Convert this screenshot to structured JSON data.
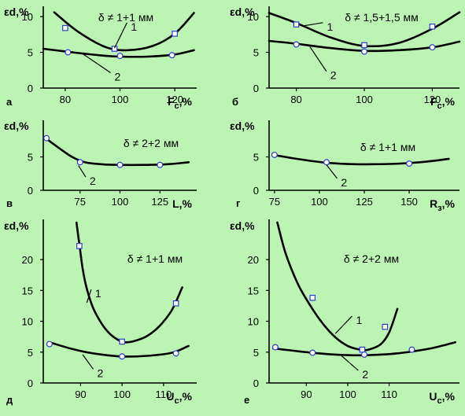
{
  "chart_data": [
    {
      "type": "line",
      "panel": "а",
      "ylabel": "εd,%",
      "xlabel": "F",
      "xlabel_sub": "c",
      "xlabel_unit": ",%",
      "note": "δ ≠ 1+1 мм",
      "xlim": [
        72,
        128
      ],
      "ylim": [
        0,
        11
      ],
      "xticks": [
        80,
        100,
        120
      ],
      "yticks": [
        0,
        5,
        10
      ],
      "curves": [
        {
          "name": "1",
          "x": [
            76,
            85,
            95,
            103,
            112,
            120,
            127
          ],
          "y": [
            10.6,
            7.8,
            5.7,
            5.3,
            5.9,
            7.6,
            10.5
          ]
        },
        {
          "name": "2",
          "x": [
            72,
            85,
            95,
            100,
            110,
            120,
            127
          ],
          "y": [
            5.5,
            4.9,
            4.5,
            4.4,
            4.4,
            4.7,
            5.3
          ]
        }
      ],
      "markers": [
        {
          "series": "1",
          "shape": "square",
          "x": [
            80,
            98,
            120
          ],
          "y": [
            8.4,
            5.5,
            7.6
          ]
        },
        {
          "series": "2",
          "shape": "circle",
          "x": [
            81,
            100,
            119
          ],
          "y": [
            5.0,
            4.5,
            4.6
          ]
        }
      ],
      "labels": [
        {
          "text": "1",
          "x": 104,
          "y": 8.6,
          "ax": 98,
          "ay": 5.6
        },
        {
          "text": "2",
          "x": 98,
          "y": 1.6,
          "ax": 86,
          "ay": 4.9
        }
      ]
    },
    {
      "type": "line",
      "panel": "б",
      "ylabel": "εd,%",
      "xlabel": "F",
      "xlabel_sub": "c",
      "xlabel_unit": ",%",
      "note": "δ ≠ 1,5+1,5 мм",
      "xlim": [
        72,
        128
      ],
      "ylim": [
        0,
        11
      ],
      "xticks": [
        80,
        100,
        120
      ],
      "yticks": [
        0,
        5,
        10
      ],
      "curves": [
        {
          "name": "1",
          "x": [
            72,
            80,
            90,
            100,
            110,
            120,
            128
          ],
          "y": [
            10.5,
            9.1,
            7.1,
            5.9,
            6.3,
            8.3,
            10.6
          ]
        },
        {
          "name": "2",
          "x": [
            72,
            80,
            90,
            100,
            110,
            120,
            128
          ],
          "y": [
            6.6,
            6.2,
            5.6,
            5.2,
            5.3,
            5.7,
            6.5
          ]
        }
      ],
      "markers": [
        {
          "series": "1",
          "shape": "square",
          "x": [
            80,
            100,
            120
          ],
          "y": [
            8.9,
            6.0,
            8.6
          ]
        },
        {
          "series": "2",
          "shape": "circle",
          "x": [
            80,
            100,
            120
          ],
          "y": [
            6.1,
            5.1,
            5.7
          ]
        }
      ],
      "labels": [
        {
          "text": "1",
          "x": 89,
          "y": 8.6,
          "ax": 82,
          "ay": 8.7
        },
        {
          "text": "2",
          "x": 90,
          "y": 1.8,
          "ax": 84,
          "ay": 5.8
        }
      ]
    },
    {
      "type": "line",
      "panel": "в",
      "ylabel": "εd,%",
      "xlabel": "L",
      "xlabel_sub": "",
      "xlabel_unit": ",%",
      "note": "δ ≠ 2+2 мм",
      "xlim": [
        52,
        148
      ],
      "ylim": [
        0,
        10
      ],
      "xticks": [
        75,
        100,
        125
      ],
      "yticks": [
        0,
        5
      ],
      "curves": [
        {
          "name": "",
          "x": [
            54,
            62,
            70,
            78,
            88,
            100,
            115,
            130,
            143
          ],
          "y": [
            7.7,
            6.3,
            5.0,
            4.2,
            3.9,
            3.8,
            3.8,
            3.9,
            4.2
          ]
        }
      ],
      "markers": [
        {
          "series": "",
          "shape": "circle",
          "x": [
            54,
            75,
            100,
            125
          ],
          "y": [
            7.8,
            4.2,
            3.8,
            3.8
          ]
        }
      ],
      "labels": [
        {
          "text": "2",
          "x": 81,
          "y": 1.4,
          "ax": 74,
          "ay": 3.7
        }
      ]
    },
    {
      "type": "line",
      "panel": "г",
      "ylabel": "εd,%",
      "xlabel": "R",
      "xlabel_sub": "з",
      "xlabel_unit": ",%",
      "note": "δ ≠ 1+1 мм",
      "xlim": [
        72,
        178
      ],
      "ylim": [
        0,
        10
      ],
      "xticks": [
        75,
        100,
        125,
        150
      ],
      "yticks": [
        0,
        5
      ],
      "curves": [
        {
          "name": "",
          "x": [
            74,
            90,
            105,
            120,
            130,
            145,
            160,
            172
          ],
          "y": [
            5.3,
            4.6,
            4.1,
            3.9,
            3.9,
            4.0,
            4.3,
            4.7
          ]
        }
      ],
      "markers": [
        {
          "series": "",
          "shape": "circle",
          "x": [
            75,
            104,
            150
          ],
          "y": [
            5.3,
            4.2,
            4.0
          ]
        }
      ],
      "labels": [
        {
          "text": "2",
          "x": 112,
          "y": 1.2,
          "ax": 104,
          "ay": 3.8
        }
      ]
    },
    {
      "type": "line",
      "panel": "д",
      "ylabel": "εd,%",
      "xlabel": "U",
      "xlabel_sub": "c",
      "xlabel_unit": ",%",
      "note": "δ ≠ 1+1 мм",
      "xlim": [
        81,
        118
      ],
      "ylim": [
        0,
        26
      ],
      "xticks": [
        90,
        100,
        110
      ],
      "yticks": [
        0,
        5,
        10,
        15,
        20
      ],
      "curves": [
        {
          "name": "1",
          "x": [
            89.0,
            89.7,
            90.5,
            91.5,
            93,
            95,
            97,
            99,
            100.5,
            103,
            106,
            109,
            112,
            114.5
          ],
          "y": [
            26,
            22.5,
            18.5,
            15.3,
            12.2,
            9.7,
            8.0,
            7.0,
            6.6,
            6.8,
            7.6,
            9.2,
            11.8,
            15.5
          ]
        },
        {
          "name": "2",
          "x": [
            83,
            88,
            93,
            100,
            106,
            112,
            116
          ],
          "y": [
            6.5,
            5.5,
            4.8,
            4.3,
            4.4,
            4.9,
            6.0
          ]
        }
      ],
      "markers": [
        {
          "series": "1",
          "shape": "square",
          "x": [
            89.7,
            100,
            113
          ],
          "y": [
            22.2,
            6.7,
            12.9
          ]
        },
        {
          "series": "2",
          "shape": "circle",
          "x": [
            82.5,
            100,
            113
          ],
          "y": [
            6.3,
            4.3,
            4.8
          ]
        }
      ],
      "labels": [
        {
          "text": "1",
          "x": 93.5,
          "y": 14.5,
          "ax": 91.5,
          "ay": 13.0
        },
        {
          "text": "2",
          "x": 94,
          "y": 1.6,
          "ax": 90.5,
          "ay": 4.6
        }
      ]
    },
    {
      "type": "line",
      "panel": "е",
      "ylabel": "εd,%",
      "xlabel": "U",
      "xlabel_sub": "c",
      "xlabel_unit": ",%",
      "note": "δ ≠ 2+2 мм",
      "xlim": [
        81,
        127
      ],
      "ylim": [
        0,
        26
      ],
      "xticks": [
        90,
        100,
        110
      ],
      "yticks": [
        0,
        5,
        10,
        15,
        20
      ],
      "curves": [
        {
          "name": "1",
          "x": [
            83,
            85,
            88,
            91,
            94,
            97,
            100,
            103,
            105,
            108,
            110,
            112
          ],
          "y": [
            26,
            21,
            16,
            12.5,
            9.6,
            7.4,
            6.0,
            5.4,
            5.4,
            6.3,
            8.2,
            12.0
          ]
        },
        {
          "name": "2",
          "x": [
            82,
            90,
            97,
            104,
            112,
            120,
            126
          ],
          "y": [
            5.6,
            5.0,
            4.6,
            4.5,
            4.8,
            5.6,
            6.6
          ]
        }
      ],
      "markers": [
        {
          "series": "1",
          "shape": "square",
          "x": [
            91.5,
            103.5,
            109
          ],
          "y": [
            13.8,
            5.4,
            9.1
          ]
        },
        {
          "series": "2",
          "shape": "circle",
          "x": [
            82.5,
            91.5,
            104,
            115.5
          ],
          "y": [
            5.8,
            4.9,
            4.6,
            5.4
          ]
        }
      ],
      "labels": [
        {
          "text": "1",
          "x": 102,
          "y": 10.2,
          "ax": 97,
          "ay": 8.0
        },
        {
          "text": "2",
          "x": 103.5,
          "y": 1.4,
          "ax": 98.5,
          "ay": 4.4
        }
      ]
    }
  ]
}
